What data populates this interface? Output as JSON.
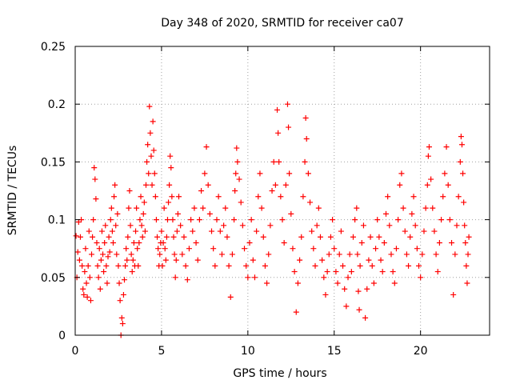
{
  "chart_data": {
    "type": "scatter",
    "title": "Day 348 of 2020, SRMTID for receiver ca07",
    "xlabel": "GPS time / hours",
    "ylabel": "SRMTID / TECUs",
    "xlim": [
      0,
      24
    ],
    "ylim": [
      0,
      0.25
    ],
    "x_ticks": [
      0,
      5,
      10,
      15,
      20
    ],
    "x_tick_labels": [
      "0",
      "5",
      "10",
      "15",
      "20"
    ],
    "y_ticks": [
      0,
      0.05,
      0.1,
      0.15,
      0.2,
      0.25
    ],
    "y_tick_labels": [
      "0",
      "0.05",
      "0.1",
      "0.15",
      "0.2",
      "0.25"
    ],
    "grid": true,
    "marker": "plus",
    "series": [
      {
        "name": "SRMTID",
        "color": "#ff0000",
        "points": [
          [
            0.05,
            0.086
          ],
          [
            0.1,
            0.05
          ],
          [
            0.15,
            0.072
          ],
          [
            0.2,
            0.098
          ],
          [
            0.25,
            0.065
          ],
          [
            0.3,
            0.085
          ],
          [
            0.35,
            0.1
          ],
          [
            0.4,
            0.06
          ],
          [
            0.45,
            0.04
          ],
          [
            0.5,
            0.035
          ],
          [
            0.55,
            0.055
          ],
          [
            0.6,
            0.075
          ],
          [
            0.65,
            0.045
          ],
          [
            0.7,
            0.033
          ],
          [
            0.75,
            0.06
          ],
          [
            0.8,
            0.09
          ],
          [
            0.85,
            0.05
          ],
          [
            0.9,
            0.03
          ],
          [
            0.95,
            0.07
          ],
          [
            1.0,
            0.085
          ],
          [
            1.05,
            0.1
          ],
          [
            1.1,
            0.145
          ],
          [
            1.15,
            0.135
          ],
          [
            1.2,
            0.118
          ],
          [
            1.25,
            0.08
          ],
          [
            1.3,
            0.06
          ],
          [
            1.35,
            0.05
          ],
          [
            1.4,
            0.075
          ],
          [
            1.45,
            0.04
          ],
          [
            1.5,
            0.065
          ],
          [
            1.55,
            0.09
          ],
          [
            1.6,
            0.07
          ],
          [
            1.65,
            0.055
          ],
          [
            1.7,
            0.08
          ],
          [
            1.75,
            0.095
          ],
          [
            1.8,
            0.06
          ],
          [
            1.85,
            0.045
          ],
          [
            1.9,
            0.068
          ],
          [
            1.95,
            0.085
          ],
          [
            2.0,
            0.072
          ],
          [
            2.05,
            0.1
          ],
          [
            2.1,
            0.11
          ],
          [
            2.15,
            0.09
          ],
          [
            2.2,
            0.08
          ],
          [
            2.25,
            0.12
          ],
          [
            2.3,
            0.13
          ],
          [
            2.35,
            0.095
          ],
          [
            2.4,
            0.07
          ],
          [
            2.45,
            0.105
          ],
          [
            2.5,
            0.06
          ],
          [
            2.55,
            0.045
          ],
          [
            2.6,
            0.03
          ],
          [
            2.65,
            0.0
          ],
          [
            2.7,
            0.015
          ],
          [
            2.75,
            0.01
          ],
          [
            2.8,
            0.035
          ],
          [
            2.85,
            0.048
          ],
          [
            2.9,
            0.06
          ],
          [
            2.95,
            0.075
          ],
          [
            3.0,
            0.065
          ],
          [
            3.05,
            0.085
          ],
          [
            3.1,
            0.11
          ],
          [
            3.15,
            0.125
          ],
          [
            3.2,
            0.095
          ],
          [
            3.25,
            0.07
          ],
          [
            3.3,
            0.055
          ],
          [
            3.35,
            0.065
          ],
          [
            3.4,
            0.08
          ],
          [
            3.45,
            0.06
          ],
          [
            3.5,
            0.09
          ],
          [
            3.55,
            0.11
          ],
          [
            3.6,
            0.075
          ],
          [
            3.65,
            0.06
          ],
          [
            3.7,
            0.08
          ],
          [
            3.75,
            0.1
          ],
          [
            3.8,
            0.12
          ],
          [
            3.85,
            0.095
          ],
          [
            3.9,
            0.085
          ],
          [
            3.95,
            0.105
          ],
          [
            4.0,
            0.115
          ],
          [
            4.05,
            0.09
          ],
          [
            4.1,
            0.13
          ],
          [
            4.15,
            0.15
          ],
          [
            4.2,
            0.165
          ],
          [
            4.25,
            0.14
          ],
          [
            4.3,
            0.198
          ],
          [
            4.35,
            0.175
          ],
          [
            4.4,
            0.155
          ],
          [
            4.45,
            0.13
          ],
          [
            4.5,
            0.185
          ],
          [
            4.55,
            0.16
          ],
          [
            4.6,
            0.14
          ],
          [
            4.65,
            0.12
          ],
          [
            4.7,
            0.1
          ],
          [
            4.75,
            0.085
          ],
          [
            4.8,
            0.075
          ],
          [
            4.85,
            0.06
          ],
          [
            4.9,
            0.07
          ],
          [
            4.95,
            0.08
          ],
          [
            5.0,
            0.09
          ],
          [
            5.05,
            0.06
          ],
          [
            5.1,
            0.08
          ],
          [
            5.15,
            0.11
          ],
          [
            5.2,
            0.075
          ],
          [
            5.25,
            0.065
          ],
          [
            5.3,
            0.085
          ],
          [
            5.35,
            0.1
          ],
          [
            5.4,
            0.115
          ],
          [
            5.45,
            0.13
          ],
          [
            5.5,
            0.155
          ],
          [
            5.55,
            0.145
          ],
          [
            5.6,
            0.12
          ],
          [
            5.65,
            0.1
          ],
          [
            5.7,
            0.085
          ],
          [
            5.75,
            0.07
          ],
          [
            5.8,
            0.05
          ],
          [
            5.85,
            0.065
          ],
          [
            5.9,
            0.09
          ],
          [
            5.95,
            0.105
          ],
          [
            6.0,
            0.12
          ],
          [
            6.1,
            0.095
          ],
          [
            6.2,
            0.07
          ],
          [
            6.3,
            0.085
          ],
          [
            6.4,
            0.06
          ],
          [
            6.5,
            0.048
          ],
          [
            6.6,
            0.075
          ],
          [
            6.7,
            0.1
          ],
          [
            6.8,
            0.09
          ],
          [
            6.9,
            0.11
          ],
          [
            7.0,
            0.08
          ],
          [
            7.1,
            0.065
          ],
          [
            7.2,
            0.1
          ],
          [
            7.3,
            0.125
          ],
          [
            7.4,
            0.11
          ],
          [
            7.5,
            0.14
          ],
          [
            7.6,
            0.163
          ],
          [
            7.7,
            0.13
          ],
          [
            7.8,
            0.105
          ],
          [
            7.9,
            0.09
          ],
          [
            8.0,
            0.075
          ],
          [
            8.1,
            0.06
          ],
          [
            8.2,
            0.1
          ],
          [
            8.3,
            0.12
          ],
          [
            8.4,
            0.09
          ],
          [
            8.5,
            0.07
          ],
          [
            8.6,
            0.095
          ],
          [
            8.7,
            0.11
          ],
          [
            8.8,
            0.085
          ],
          [
            8.9,
            0.06
          ],
          [
            9.0,
            0.033
          ],
          [
            9.1,
            0.07
          ],
          [
            9.2,
            0.1
          ],
          [
            9.25,
            0.125
          ],
          [
            9.3,
            0.14
          ],
          [
            9.35,
            0.162
          ],
          [
            9.4,
            0.15
          ],
          [
            9.5,
            0.135
          ],
          [
            9.6,
            0.115
          ],
          [
            9.7,
            0.095
          ],
          [
            9.8,
            0.075
          ],
          [
            9.9,
            0.06
          ],
          [
            10.0,
            0.05
          ],
          [
            10.1,
            0.08
          ],
          [
            10.2,
            0.1
          ],
          [
            10.3,
            0.065
          ],
          [
            10.4,
            0.05
          ],
          [
            10.5,
            0.09
          ],
          [
            10.6,
            0.12
          ],
          [
            10.7,
            0.14
          ],
          [
            10.8,
            0.11
          ],
          [
            10.9,
            0.085
          ],
          [
            11.0,
            0.06
          ],
          [
            11.1,
            0.045
          ],
          [
            11.2,
            0.07
          ],
          [
            11.3,
            0.095
          ],
          [
            11.4,
            0.125
          ],
          [
            11.5,
            0.15
          ],
          [
            11.6,
            0.13
          ],
          [
            11.7,
            0.195
          ],
          [
            11.75,
            0.175
          ],
          [
            11.8,
            0.15
          ],
          [
            11.9,
            0.12
          ],
          [
            12.0,
            0.1
          ],
          [
            12.1,
            0.08
          ],
          [
            12.2,
            0.13
          ],
          [
            12.3,
            0.2
          ],
          [
            12.35,
            0.18
          ],
          [
            12.4,
            0.14
          ],
          [
            12.5,
            0.105
          ],
          [
            12.6,
            0.075
          ],
          [
            12.7,
            0.055
          ],
          [
            12.8,
            0.02
          ],
          [
            12.9,
            0.045
          ],
          [
            13.0,
            0.065
          ],
          [
            13.1,
            0.085
          ],
          [
            13.2,
            0.12
          ],
          [
            13.3,
            0.15
          ],
          [
            13.35,
            0.188
          ],
          [
            13.4,
            0.17
          ],
          [
            13.5,
            0.14
          ],
          [
            13.6,
            0.115
          ],
          [
            13.7,
            0.09
          ],
          [
            13.8,
            0.075
          ],
          [
            13.9,
            0.06
          ],
          [
            14.0,
            0.095
          ],
          [
            14.1,
            0.11
          ],
          [
            14.2,
            0.085
          ],
          [
            14.3,
            0.065
          ],
          [
            14.4,
            0.05
          ],
          [
            14.5,
            0.035
          ],
          [
            14.6,
            0.055
          ],
          [
            14.7,
            0.07
          ],
          [
            14.8,
            0.085
          ],
          [
            14.9,
            0.1
          ],
          [
            15.0,
            0.075
          ],
          [
            15.1,
            0.055
          ],
          [
            15.2,
            0.045
          ],
          [
            15.3,
            0.07
          ],
          [
            15.4,
            0.09
          ],
          [
            15.5,
            0.06
          ],
          [
            15.6,
            0.04
          ],
          [
            15.7,
            0.025
          ],
          [
            15.8,
            0.05
          ],
          [
            15.9,
            0.07
          ],
          [
            16.0,
            0.055
          ],
          [
            16.1,
            0.085
          ],
          [
            16.2,
            0.1
          ],
          [
            16.3,
            0.11
          ],
          [
            16.35,
            0.07
          ],
          [
            16.4,
            0.038
          ],
          [
            16.45,
            0.022
          ],
          [
            16.5,
            0.06
          ],
          [
            16.6,
            0.08
          ],
          [
            16.7,
            0.095
          ],
          [
            16.8,
            0.015
          ],
          [
            16.9,
            0.04
          ],
          [
            17.0,
            0.065
          ],
          [
            17.1,
            0.085
          ],
          [
            17.2,
            0.06
          ],
          [
            17.3,
            0.045
          ],
          [
            17.4,
            0.075
          ],
          [
            17.5,
            0.1
          ],
          [
            17.6,
            0.085
          ],
          [
            17.7,
            0.065
          ],
          [
            17.8,
            0.055
          ],
          [
            17.9,
            0.08
          ],
          [
            18.0,
            0.105
          ],
          [
            18.1,
            0.12
          ],
          [
            18.2,
            0.095
          ],
          [
            18.3,
            0.07
          ],
          [
            18.4,
            0.055
          ],
          [
            18.5,
            0.045
          ],
          [
            18.6,
            0.075
          ],
          [
            18.7,
            0.1
          ],
          [
            18.8,
            0.13
          ],
          [
            18.9,
            0.14
          ],
          [
            19.0,
            0.11
          ],
          [
            19.1,
            0.09
          ],
          [
            19.2,
            0.07
          ],
          [
            19.3,
            0.06
          ],
          [
            19.4,
            0.085
          ],
          [
            19.5,
            0.105
          ],
          [
            19.6,
            0.12
          ],
          [
            19.7,
            0.095
          ],
          [
            19.8,
            0.075
          ],
          [
            19.9,
            0.06
          ],
          [
            20.0,
            0.05
          ],
          [
            20.1,
            0.07
          ],
          [
            20.2,
            0.09
          ],
          [
            20.3,
            0.11
          ],
          [
            20.4,
            0.13
          ],
          [
            20.45,
            0.155
          ],
          [
            20.5,
            0.163
          ],
          [
            20.6,
            0.135
          ],
          [
            20.7,
            0.11
          ],
          [
            20.8,
            0.09
          ],
          [
            20.9,
            0.07
          ],
          [
            21.0,
            0.055
          ],
          [
            21.1,
            0.08
          ],
          [
            21.2,
            0.1
          ],
          [
            21.3,
            0.12
          ],
          [
            21.4,
            0.14
          ],
          [
            21.5,
            0.163
          ],
          [
            21.6,
            0.13
          ],
          [
            21.7,
            0.1
          ],
          [
            21.8,
            0.08
          ],
          [
            21.9,
            0.035
          ],
          [
            22.0,
            0.07
          ],
          [
            22.1,
            0.095
          ],
          [
            22.2,
            0.12
          ],
          [
            22.3,
            0.15
          ],
          [
            22.35,
            0.172
          ],
          [
            22.4,
            0.165
          ],
          [
            22.45,
            0.14
          ],
          [
            22.5,
            0.115
          ],
          [
            22.55,
            0.095
          ],
          [
            22.6,
            0.08
          ],
          [
            22.65,
            0.06
          ],
          [
            22.7,
            0.045
          ],
          [
            22.75,
            0.07
          ],
          [
            22.8,
            0.085
          ]
        ]
      }
    ]
  }
}
